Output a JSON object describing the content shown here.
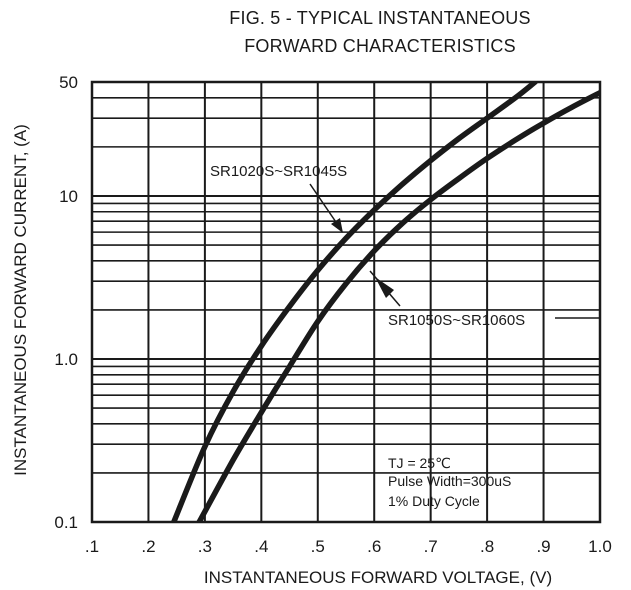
{
  "chart_data": {
    "type": "line",
    "title_line1": "FIG. 5 - TYPICAL INSTANTANEOUS",
    "title_line2": "FORWARD CHARACTERISTICS",
    "xlabel": "INSTANTANEOUS FORWARD VOLTAGE, (V)",
    "ylabel": "INSTANTANEOUS FORWARD CURRENT, (A)",
    "xlim": [
      0.1,
      1.0
    ],
    "ylim": [
      0.1,
      50
    ],
    "y_scale": "log",
    "grid": true,
    "x_ticks": [
      {
        "v": 0.1,
        "label": ".1"
      },
      {
        "v": 0.2,
        "label": ".2"
      },
      {
        "v": 0.3,
        "label": ".3"
      },
      {
        "v": 0.4,
        "label": ".4"
      },
      {
        "v": 0.5,
        "label": ".5"
      },
      {
        "v": 0.6,
        "label": ".6"
      },
      {
        "v": 0.7,
        "label": ".7"
      },
      {
        "v": 0.8,
        "label": ".8"
      },
      {
        "v": 0.9,
        "label": ".9"
      },
      {
        "v": 1.0,
        "label": "1.0"
      }
    ],
    "y_ticks": [
      {
        "v": 0.1,
        "label": "0.1"
      },
      {
        "v": 1.0,
        "label": "1.0"
      },
      {
        "v": 10,
        "label": "10"
      },
      {
        "v": 50,
        "label": "50"
      }
    ],
    "series": [
      {
        "name": "SR1020S~SR1045S",
        "x": [
          0.245,
          0.3,
          0.35,
          0.4,
          0.45,
          0.5,
          0.55,
          0.6,
          0.65,
          0.7,
          0.75,
          0.8,
          0.85,
          0.885
        ],
        "y": [
          0.1,
          0.29,
          0.63,
          1.2,
          2.1,
          3.5,
          5.5,
          8.2,
          11.8,
          16.5,
          22.5,
          30,
          40,
          50
        ]
      },
      {
        "name": "SR1050S~SR1060S",
        "x": [
          0.29,
          0.35,
          0.4,
          0.45,
          0.5,
          0.55,
          0.6,
          0.65,
          0.7,
          0.75,
          0.8,
          0.85,
          0.9,
          0.95,
          1.0
        ],
        "y": [
          0.1,
          0.24,
          0.47,
          0.9,
          1.7,
          2.9,
          4.6,
          6.8,
          9.5,
          12.8,
          17,
          22,
          28,
          35,
          43
        ]
      }
    ],
    "annotations": {
      "series1_label": "SR1020S~SR1045S",
      "series2_label": "SR1050S~SR1060S",
      "cond_tj": "TJ = 25℃",
      "cond_pulse": "Pulse Width=300uS",
      "cond_duty": "1% Duty Cycle"
    }
  }
}
